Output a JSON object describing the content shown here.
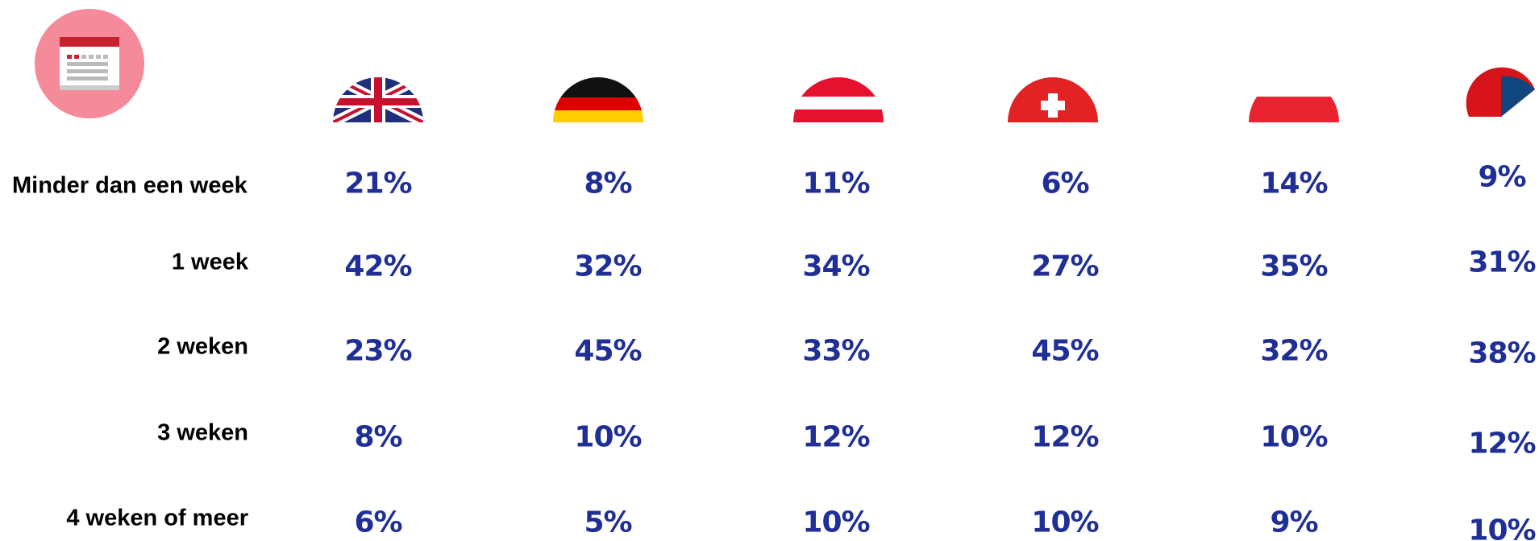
{
  "table": {
    "rows": [
      {
        "label": "Minder dan een week",
        "cells": [
          "21%",
          "8%",
          "11%",
          "6%",
          "14%",
          "9%"
        ]
      },
      {
        "label": "1 week",
        "cells": [
          "42%",
          "32%",
          "34%",
          "27%",
          "35%",
          "31%"
        ]
      },
      {
        "label": "2 weken",
        "cells": [
          "23%",
          "45%",
          "33%",
          "45%",
          "32%",
          "38%"
        ]
      },
      {
        "label": "3 weken",
        "cells": [
          "8%",
          "10%",
          "12%",
          "12%",
          "10%",
          "12%"
        ]
      },
      {
        "label": "4 weken of meer",
        "cells": [
          "6%",
          "5%",
          "10%",
          "10%",
          "9%",
          "10%"
        ]
      }
    ]
  }
}
